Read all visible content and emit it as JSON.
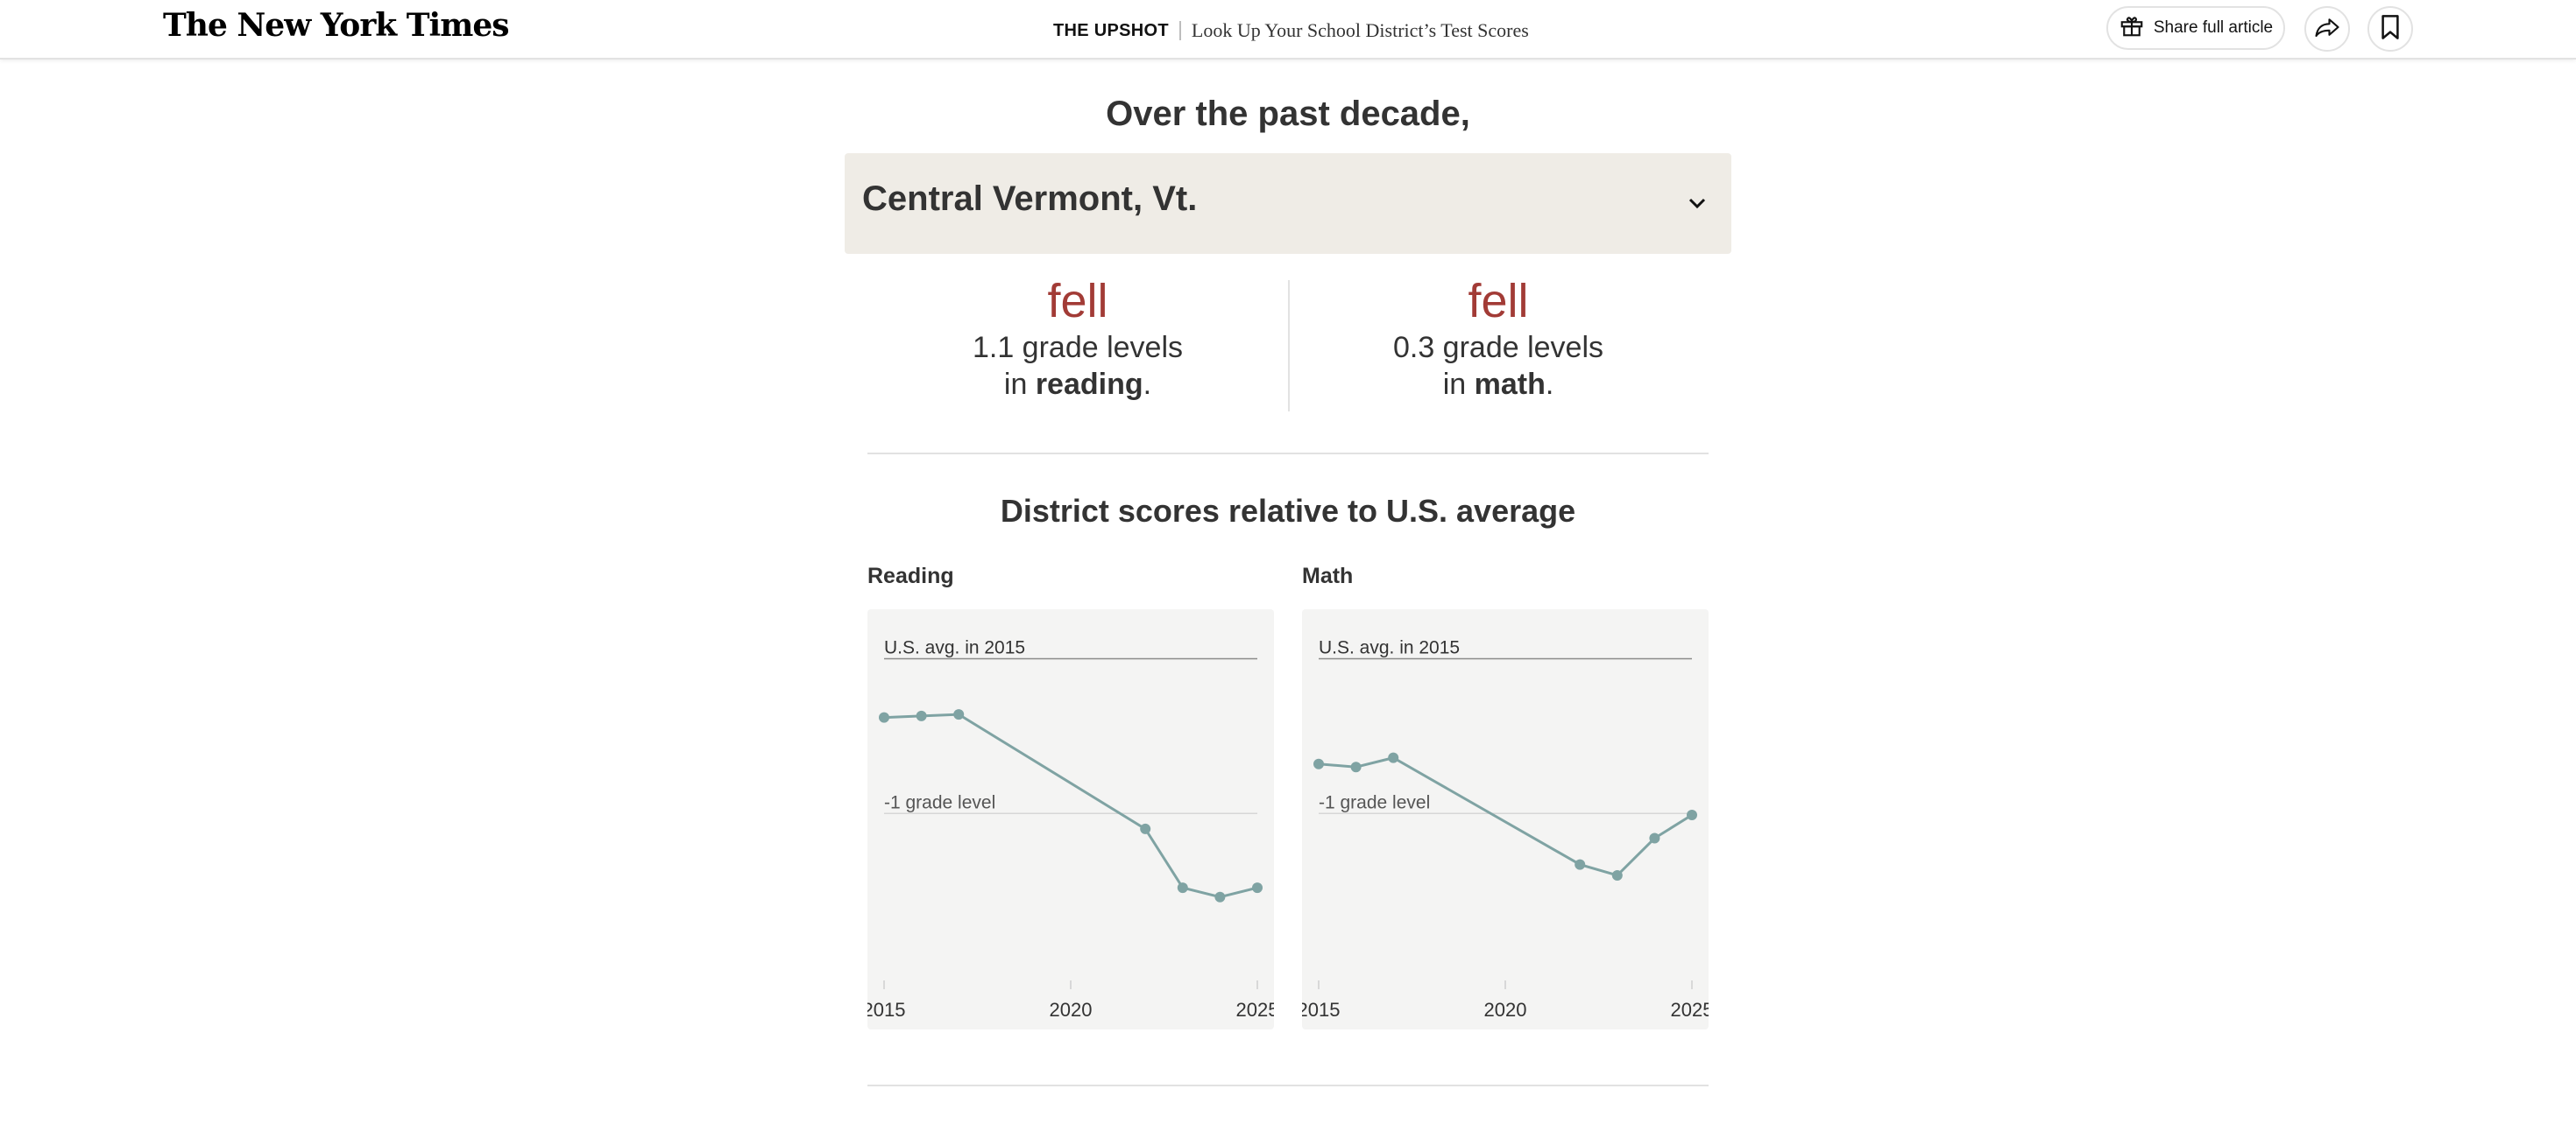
{
  "header": {
    "logo": "The New York Times",
    "section": "THE UPSHOT",
    "headline": "Look Up Your School District’s Test Scores",
    "share_label": "Share full article",
    "icons": {
      "gift": "gift-icon",
      "share": "share-arrow-icon",
      "bookmark": "bookmark-icon"
    }
  },
  "main": {
    "lead": "Over the past decade,",
    "district": "Central Vermont, Vt.",
    "stats": [
      {
        "direction": "fell",
        "amount": "1.1 grade levels",
        "prefix": "in ",
        "subject": "reading",
        "suffix": "."
      },
      {
        "direction": "fell",
        "amount": "0.3 grade levels",
        "prefix": "in ",
        "subject": "math",
        "suffix": "."
      }
    ],
    "chart_title": "District scores relative to U.S. average"
  },
  "colors": {
    "accent_red": "#a23b36",
    "line": "#7fa3a3",
    "panel_bg": "#f4f4f3",
    "selector_bg": "#efece6"
  },
  "chart_data": [
    {
      "type": "line",
      "title": "Reading",
      "x": [
        2015,
        2016,
        2017,
        2022,
        2023,
        2024,
        2025
      ],
      "values": [
        -0.38,
        -0.37,
        -0.36,
        -1.1,
        -1.48,
        -1.54,
        -1.48
      ],
      "xlim": [
        2015,
        2025
      ],
      "ylim": [
        -2.0,
        0.15
      ],
      "xticks": [
        "2015",
        "2020",
        "2025"
      ],
      "reference_lines": [
        {
          "value": 0,
          "label": "U.S. avg. in 2015"
        },
        {
          "value": -1,
          "label": "-1 grade level"
        }
      ]
    },
    {
      "type": "line",
      "title": "Math",
      "x": [
        2015,
        2016,
        2017,
        2022,
        2023,
        2024,
        2025
      ],
      "values": [
        -0.68,
        -0.7,
        -0.64,
        -1.33,
        -1.4,
        -1.16,
        -1.01
      ],
      "xlim": [
        2015,
        2025
      ],
      "ylim": [
        -2.0,
        0.15
      ],
      "xticks": [
        "2015",
        "2020",
        "2025"
      ],
      "reference_lines": [
        {
          "value": 0,
          "label": "U.S. avg. in 2015"
        },
        {
          "value": -1,
          "label": "-1 grade level"
        }
      ]
    }
  ]
}
